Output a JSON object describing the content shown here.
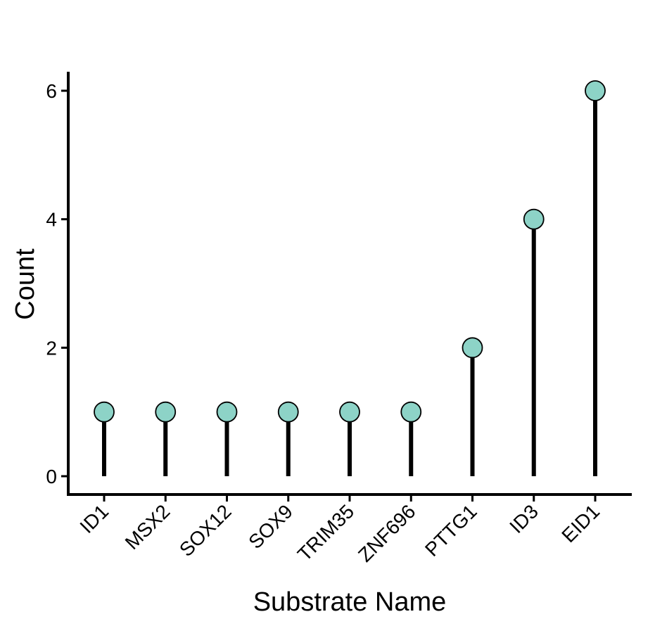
{
  "chart_data": {
    "type": "lollipop",
    "xlabel": "Substrate Name",
    "ylabel": "Count",
    "categories": [
      "ID1",
      "MSX2",
      "SOX12",
      "SOX9",
      "TRIM35",
      "ZNF696",
      "PTTG1",
      "ID3",
      "EID1"
    ],
    "values": [
      1,
      1,
      1,
      1,
      1,
      1,
      2,
      4,
      6
    ],
    "ylim": [
      0,
      6
    ],
    "yticks": [
      0,
      2,
      4,
      6
    ],
    "grid": false,
    "legend": "none",
    "colors": {
      "point_fill": "#8dd3c7",
      "point_stroke": "#000000",
      "stem": "#000000",
      "axis": "#000000"
    }
  }
}
